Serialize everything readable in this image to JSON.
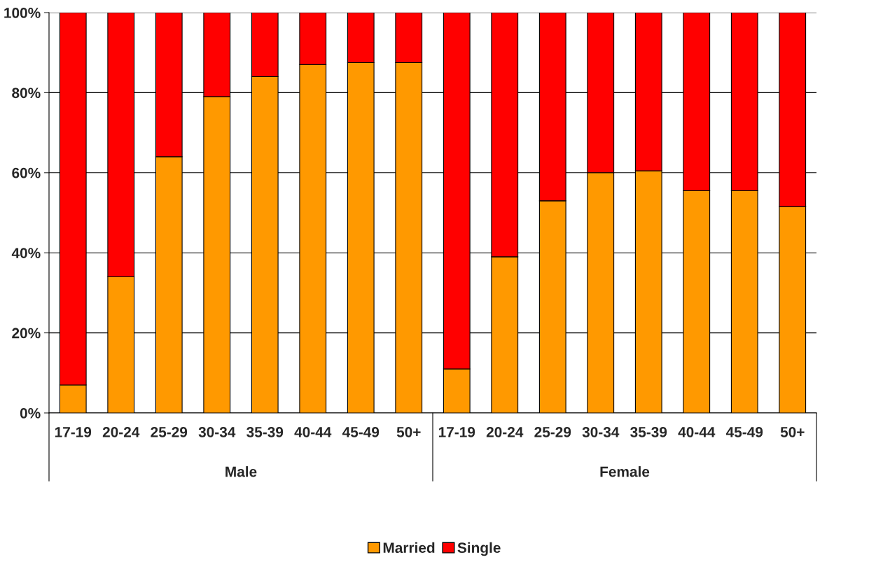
{
  "chart_data": {
    "type": "bar",
    "stacked": true,
    "categories": [
      "17-19",
      "20-24",
      "25-29",
      "30-34",
      "35-39",
      "40-44",
      "45-49",
      "50+",
      "17-19",
      "20-24",
      "25-29",
      "30-34",
      "35-39",
      "40-44",
      "45-49",
      "50+"
    ],
    "series": [
      {
        "name": "Married",
        "color": "#ff9900",
        "values": [
          7,
          34,
          64,
          79,
          84,
          87,
          87.5,
          87.5,
          11,
          39,
          53,
          60,
          60.5,
          55.5,
          55.5,
          51.5
        ]
      },
      {
        "name": "Single",
        "color": "#ff0000",
        "values": [
          93,
          66,
          36,
          21,
          16,
          13,
          12.5,
          12.5,
          89,
          61,
          47,
          40,
          39.5,
          44.5,
          44.5,
          48.5
        ]
      }
    ],
    "ylim": [
      0,
      100
    ],
    "yticks": [
      {
        "value": 0,
        "label": "0%"
      },
      {
        "value": 20,
        "label": "20%"
      },
      {
        "value": 40,
        "label": "40%"
      },
      {
        "value": 60,
        "label": "60%"
      },
      {
        "value": 80,
        "label": "80%"
      },
      {
        "value": 100,
        "label": "100%"
      }
    ],
    "grid": "y",
    "legend": "bottom",
    "annotations": [
      "Male",
      "Female"
    ]
  }
}
